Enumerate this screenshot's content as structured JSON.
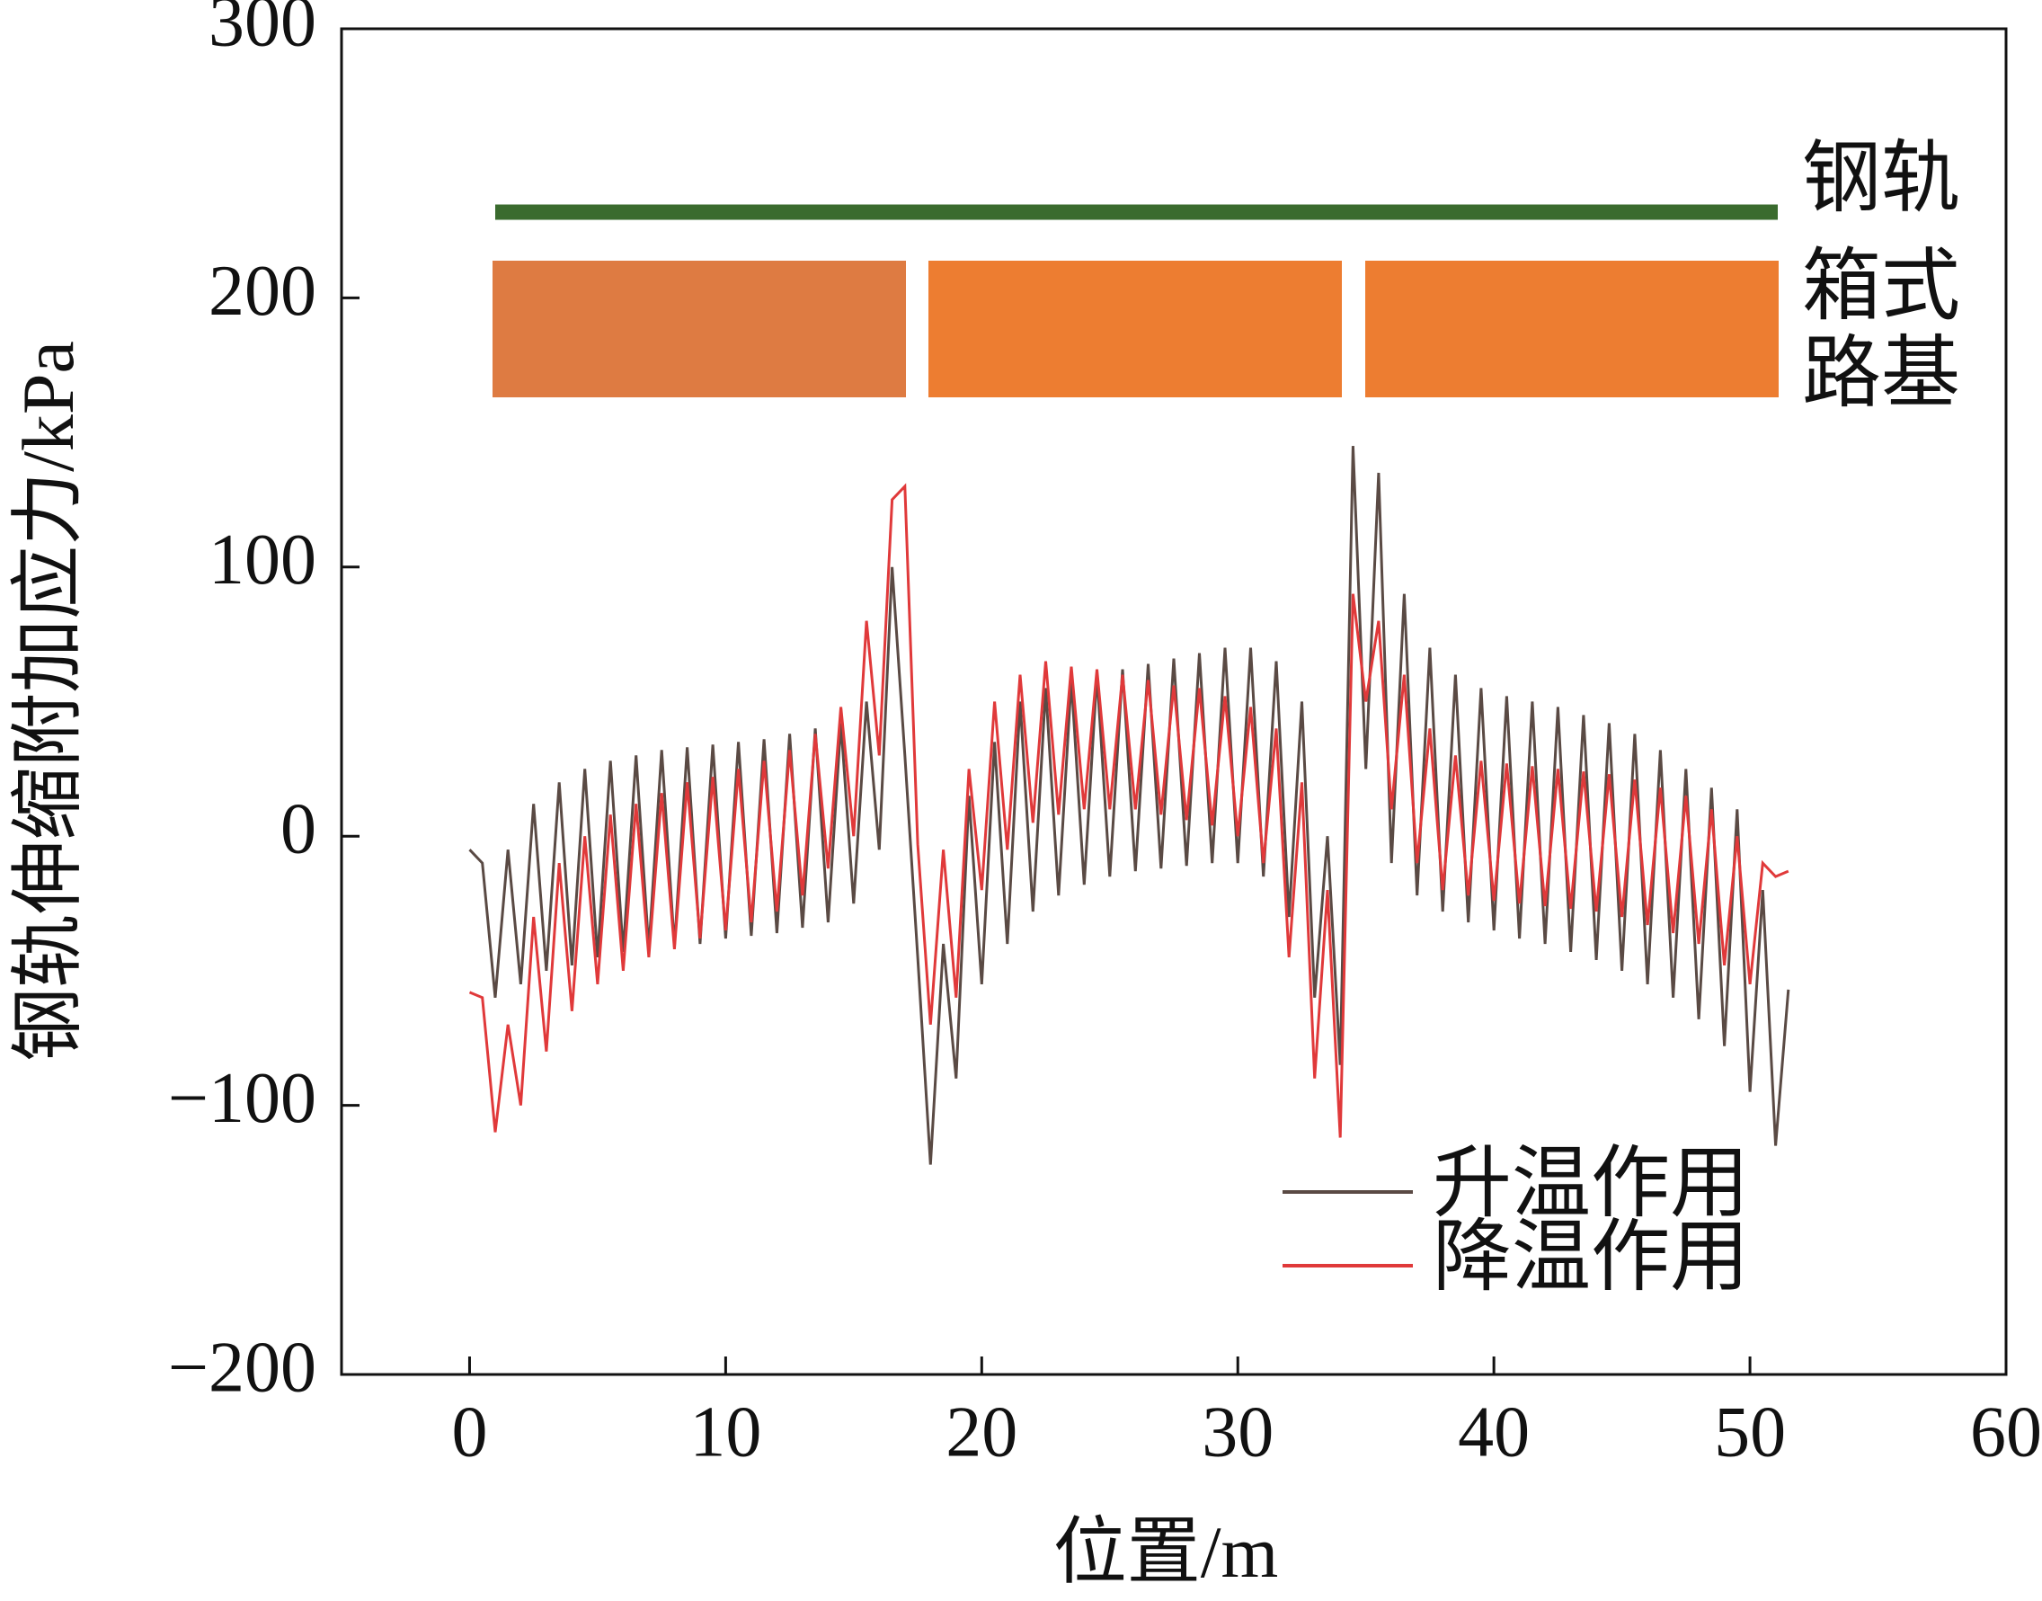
{
  "chart_data": {
    "type": "line",
    "x_label": "位置/m",
    "y_label": "钢轨伸缩附加应力/kPa",
    "annotations": [
      "钢轨",
      "箱式",
      "路基"
    ],
    "xlim": [
      -5,
      60
    ],
    "xticks": [
      0,
      10,
      20,
      30,
      40,
      50,
      60
    ],
    "ylim": [
      -200,
      300
    ],
    "yticks": [
      {
        "value": -200,
        "label": "−200"
      },
      {
        "value": -100,
        "label": "−100"
      },
      0,
      100,
      200,
      300
    ],
    "x": [
      0,
      0.5,
      1,
      1.5,
      2,
      2.5,
      3,
      3.5,
      4,
      4.5,
      5,
      5.5,
      6,
      6.5,
      7,
      7.5,
      8,
      8.5,
      9,
      9.5,
      10,
      10.5,
      11,
      11.5,
      12,
      12.5,
      13,
      13.5,
      14,
      14.5,
      15,
      15.5,
      16,
      16.5,
      17,
      17.5,
      18,
      18.5,
      19,
      19.5,
      20,
      20.5,
      21,
      21.5,
      22,
      22.5,
      23,
      23.5,
      24,
      24.5,
      25,
      25.5,
      26,
      26.5,
      27,
      27.5,
      28,
      28.5,
      29,
      29.5,
      30,
      30.5,
      31,
      31.5,
      32,
      32.5,
      33,
      33.5,
      34,
      34.5,
      35,
      35.5,
      36,
      36.5,
      37,
      37.5,
      38,
      38.5,
      39,
      39.5,
      40,
      40.5,
      41,
      41.5,
      42,
      42.5,
      43,
      43.5,
      44,
      44.5,
      45,
      45.5,
      46,
      46.5,
      47,
      47.5,
      48,
      48.5,
      49,
      49.5,
      50,
      50.5,
      51,
      51.5
    ],
    "series": [
      {
        "name": "升温作用",
        "color": "#5a4a44",
        "values": [
          -5,
          -10,
          -60,
          -5,
          -55,
          12,
          -50,
          20,
          -48,
          25,
          -45,
          28,
          -43,
          30,
          -42,
          32,
          -41,
          33,
          -40,
          34,
          -38,
          35,
          -37,
          36,
          -36,
          38,
          -34,
          40,
          -32,
          42,
          -25,
          50,
          -5,
          100,
          30,
          -45,
          -122,
          -40,
          -90,
          15,
          -55,
          35,
          -40,
          50,
          -28,
          55,
          -22,
          58,
          -18,
          60,
          -15,
          62,
          -13,
          64,
          -12,
          66,
          -11,
          68,
          -10,
          70,
          -10,
          70,
          -15,
          65,
          -30,
          50,
          -60,
          0,
          -85,
          145,
          25,
          135,
          -10,
          90,
          -22,
          70,
          -28,
          60,
          -32,
          55,
          -35,
          52,
          -38,
          50,
          -40,
          48,
          -43,
          45,
          -46,
          42,
          -50,
          38,
          -55,
          32,
          -60,
          25,
          -68,
          18,
          -78,
          10,
          -95,
          -20,
          -115,
          -57
        ]
      },
      {
        "name": "降温作用",
        "color": "#e0393a",
        "values": [
          -58,
          -60,
          -110,
          -70,
          -100,
          -30,
          -80,
          -10,
          -65,
          0,
          -55,
          8,
          -50,
          12,
          -45,
          16,
          -42,
          20,
          -38,
          22,
          -35,
          25,
          -32,
          28,
          -28,
          32,
          -22,
          38,
          -12,
          48,
          0,
          80,
          30,
          125,
          130,
          -3,
          -70,
          -5,
          -60,
          25,
          -20,
          50,
          -5,
          60,
          5,
          65,
          8,
          63,
          10,
          62,
          10,
          60,
          10,
          58,
          8,
          56,
          6,
          55,
          4,
          52,
          0,
          48,
          -10,
          40,
          -45,
          20,
          -90,
          -20,
          -112,
          90,
          50,
          80,
          10,
          60,
          -10,
          40,
          -20,
          30,
          -22,
          28,
          -24,
          27,
          -25,
          26,
          -26,
          25,
          -27,
          24,
          -28,
          23,
          -30,
          21,
          -33,
          18,
          -36,
          15,
          -40,
          10,
          -48,
          0,
          -55,
          -10,
          -15,
          -13
        ]
      }
    ]
  }
}
